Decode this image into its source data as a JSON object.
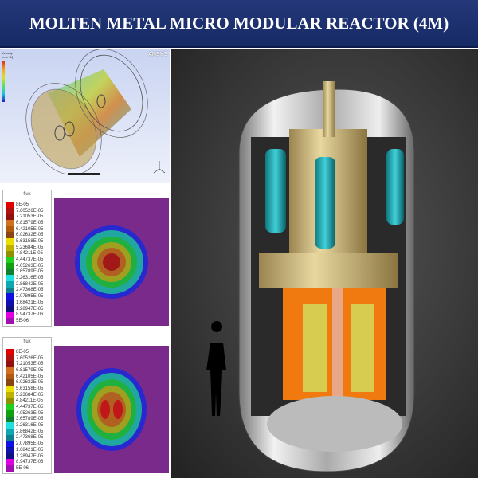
{
  "title": "MOLTEN METAL MICRO MODULAR REACTOR (4M)",
  "cfd": {
    "logo": "ANSYS",
    "legend_label": "Velocity",
    "unit": "[m s^-1]"
  },
  "flux_legend": {
    "title": "flux",
    "values": [
      "8E-05",
      "7.60526E-05",
      "7.21053E-05",
      "6.81579E-05",
      "6.42105E-05",
      "6.02632E-05",
      "5.63158E-05",
      "5.23684E-05",
      "4.84211E-05",
      "4.44737E-05",
      "4.05263E-05",
      "3.65789E-05",
      "3.26316E-05",
      "2.86842E-05",
      "2.47368E-05",
      "2.07895E-05",
      "1.68421E-05",
      "1.28947E-05",
      "8.94737E-06",
      "5E-06"
    ],
    "colors": [
      "#e00000",
      "#b01010",
      "#901010",
      "#d07020",
      "#b05a10",
      "#8a4510",
      "#e8e000",
      "#c0b000",
      "#909000",
      "#20d020",
      "#10a010",
      "#108030",
      "#20e0e0",
      "#10a8b0",
      "#108090",
      "#1010e0",
      "#1010b0",
      "#101080",
      "#e000e0",
      "#a010b0"
    ]
  },
  "reactor_colors": {
    "vessel": "#d8d8d8",
    "cylinder": "#c8b070",
    "heat_exchanger": "#20a8b0",
    "reflector": "#f07a10",
    "fuel": "#d8cc50",
    "core_channel": "#e8a888"
  }
}
